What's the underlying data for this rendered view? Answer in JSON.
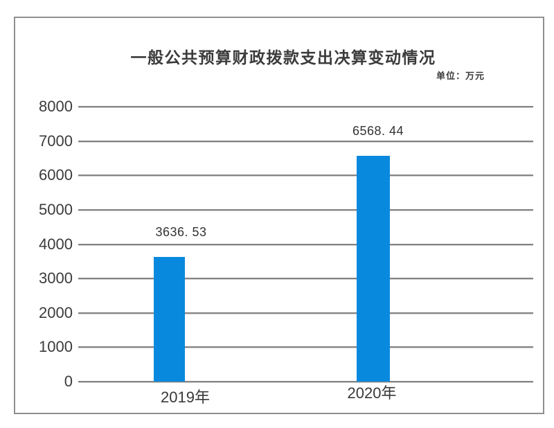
{
  "page": {
    "background": "#ffffff",
    "frame_border_color": "#8f8f8f"
  },
  "chart": {
    "title": "一般公共预算财政拨款支出决算变动情况",
    "unit_label": "单位：万元",
    "bar_color": "#0989de",
    "grid_color": "#848484",
    "text_color": "#3b3b3b"
  },
  "chart_data": {
    "type": "bar",
    "title": "一般公共预算财政拨款支出决算变动情况",
    "unit": "万元",
    "categories": [
      "2019年",
      "2020年"
    ],
    "values": [
      3636.53,
      6568.44
    ],
    "value_labels": [
      "3636. 53",
      "6568. 44"
    ],
    "series_color": "#0989de",
    "xlabel": "",
    "ylabel": "",
    "ylim": [
      0,
      8000
    ],
    "ytick_interval": 1000,
    "yticks": [
      "8000",
      "7000",
      "6000",
      "5000",
      "4000",
      "3000",
      "2000",
      "1000",
      "0"
    ],
    "grid": true,
    "legend": false
  }
}
